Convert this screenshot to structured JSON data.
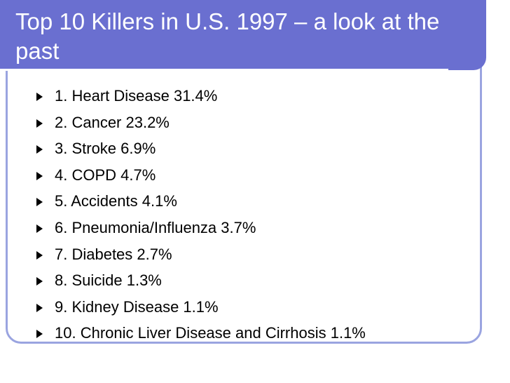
{
  "slide": {
    "title": "Top 10 Killers in U.S. 1997 – a look at the past",
    "items": [
      {
        "text": "1.  Heart Disease 31.4%"
      },
      {
        "text": "2.  Cancer  23.2%"
      },
      {
        "text": "3.  Stroke  6.9%"
      },
      {
        "text": "4.  COPD  4.7%"
      },
      {
        "text": "5.  Accidents  4.1%"
      },
      {
        "text": "6.  Pneumonia/Influenza  3.7%"
      },
      {
        "text": "7.  Diabetes  2.7%"
      },
      {
        "text": "8.  Suicide  1.3%"
      },
      {
        "text": "9.  Kidney Disease  1.1%"
      },
      {
        "text": "10.  Chronic Liver Disease and Cirrhosis  1.1%"
      }
    ]
  },
  "colors": {
    "title_bar": "#6a6fd0",
    "frame": "#9aa4e0",
    "title_text": "#ffffff",
    "body_text": "#000000"
  },
  "icons": {
    "bullet": "triangle-bullet-icon"
  }
}
